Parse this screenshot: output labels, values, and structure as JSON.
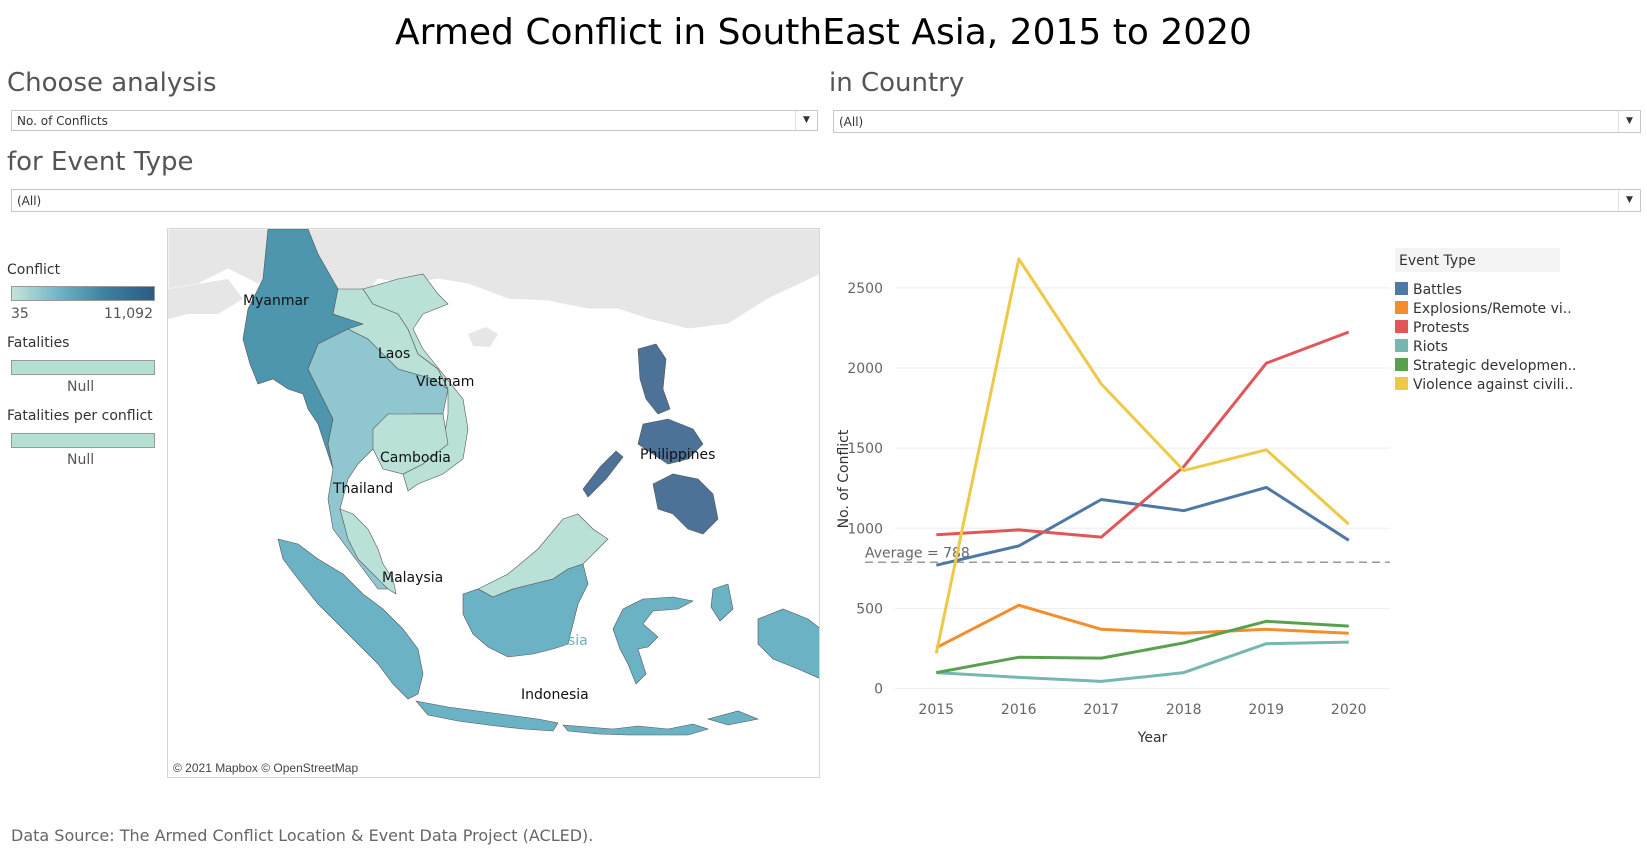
{
  "title": "Armed Conflict in SouthEast Asia, 2015 to 2020",
  "filters": {
    "analysis": {
      "label": "Choose analysis",
      "value": "No. of Conflicts"
    },
    "country": {
      "label": "in Country",
      "value": "(All)"
    },
    "event_type": {
      "label": "for Event Type",
      "value": "(All)"
    }
  },
  "legends": {
    "conflict": {
      "title": "Conflict",
      "min": "35",
      "max": "11,092"
    },
    "fatalities": {
      "title": "Fatalities",
      "value": "Null"
    },
    "fatalities_per_conflict": {
      "title": "Fatalities per conflict",
      "value": "Null"
    }
  },
  "map": {
    "labels": {
      "myanmar": "Myanmar",
      "laos": "Laos",
      "vietnam": "Vietnam",
      "cambodia": "Cambodia",
      "thailand": "Thailand",
      "philippines": "Philippines",
      "malaysia": "Malaysia",
      "indonesia_borneo": "Indonesia",
      "indonesia": "Indonesia"
    },
    "colors": {
      "myanmar": "#4e96ae",
      "thailand": "#8fc6cf",
      "laos": "#b9e1d8",
      "vietnam": "#b9e1d8",
      "cambodia": "#b9e1d8",
      "malaysia": "#b9e1d8",
      "philippines": "#4c7397",
      "indonesia": "#6bb2c4",
      "other_land": "#e6e6e6"
    },
    "credit": "© 2021 Mapbox © OpenStreetMap"
  },
  "chart_data": {
    "type": "line",
    "x": [
      2015,
      2016,
      2017,
      2018,
      2019,
      2020
    ],
    "xlabel": "Year",
    "ylabel": "No. of Conflict",
    "ylim": [
      -40,
      2780
    ],
    "yticks": [
      0,
      500,
      1000,
      1500,
      2000,
      2500
    ],
    "grid": true,
    "legend": {
      "title": "Event Type",
      "position": "right"
    },
    "reference_line": {
      "label": "Average = 788",
      "value": 788
    },
    "series": [
      {
        "name": "Battles",
        "label": "Battles",
        "color": "#4e79a7",
        "values": [
          770,
          890,
          1180,
          1110,
          1255,
          925
        ]
      },
      {
        "name": "Explosions/Remote violence",
        "label": "Explosions/Remote vi..",
        "color": "#f28e2b",
        "values": [
          255,
          520,
          370,
          345,
          370,
          345
        ]
      },
      {
        "name": "Protests",
        "label": "Protests",
        "color": "#e15759",
        "values": [
          960,
          990,
          945,
          1385,
          2030,
          2225
        ]
      },
      {
        "name": "Riots",
        "label": "Riots",
        "color": "#76b7b2",
        "values": [
          100,
          70,
          45,
          100,
          280,
          290
        ]
      },
      {
        "name": "Strategic developments",
        "label": "Strategic developmen..",
        "color": "#59a14f",
        "values": [
          100,
          195,
          190,
          285,
          420,
          390
        ]
      },
      {
        "name": "Violence against civilians",
        "label": "Violence against civili..",
        "color": "#edc948",
        "values": [
          220,
          2680,
          1900,
          1360,
          1490,
          1025
        ]
      }
    ]
  },
  "source": "Data Source: The Armed Conflict Location & Event Data Project (ACLED)."
}
